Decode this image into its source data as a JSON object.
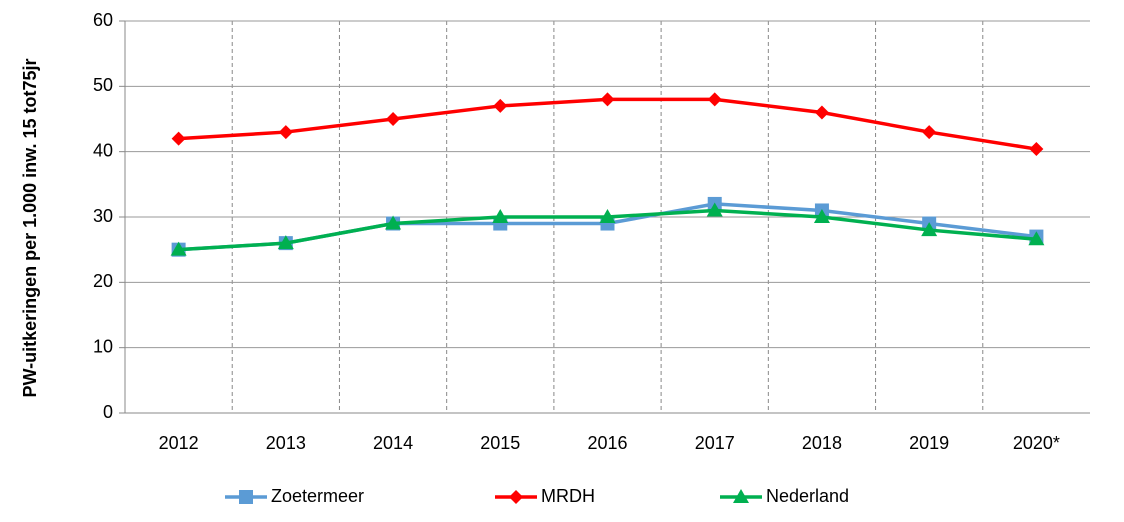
{
  "chart_data": {
    "type": "line",
    "y_label": "PW-uitkeringen per 1.000 inw. 15 tot75jr",
    "categories": [
      "2012",
      "2013",
      "2014",
      "2015",
      "2016",
      "2017",
      "2018",
      "2019",
      "2020*"
    ],
    "series": [
      {
        "name": "Zoetermeer",
        "color": "#5b9bd5",
        "marker": "square",
        "values": [
          25,
          26,
          29,
          29,
          29,
          32,
          31,
          29,
          27
        ]
      },
      {
        "name": "MRDH",
        "color": "#ff0000",
        "marker": "diamond",
        "values": [
          42,
          43,
          45,
          47,
          48,
          48,
          46,
          43,
          40.4
        ]
      },
      {
        "name": "Nederland",
        "color": "#00b050",
        "marker": "triangle",
        "values": [
          25,
          26,
          29,
          30,
          30,
          31,
          30,
          28,
          26.6
        ]
      }
    ],
    "ylim": [
      0,
      60
    ],
    "yticks": [
      0,
      10,
      20,
      30,
      40,
      50,
      60
    ],
    "grid": true,
    "legend": "bottom"
  }
}
